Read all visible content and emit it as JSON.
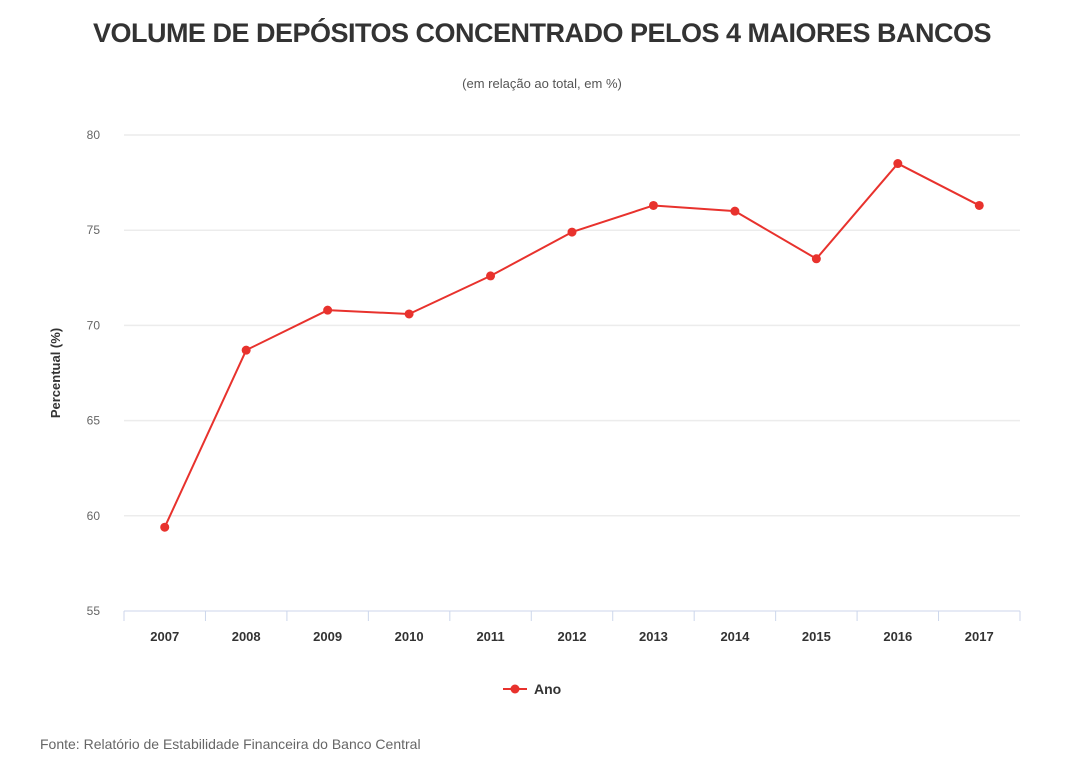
{
  "chart_data": {
    "type": "line",
    "title": "VOLUME DE DEPÓSITOS CONCENTRADO PELOS 4 MAIORES BANCOS",
    "subtitle": "(em relação ao total, em %)",
    "xlabel": "",
    "ylabel": "Percentual (%)",
    "ylim": [
      55,
      80
    ],
    "yticks": [
      "55",
      "60",
      "65",
      "70",
      "75",
      "80"
    ],
    "ytick_values": [
      55,
      60,
      65,
      70,
      75,
      80
    ],
    "categories": [
      "2007",
      "2008",
      "2009",
      "2010",
      "2011",
      "2012",
      "2013",
      "2014",
      "2015",
      "2016",
      "2017"
    ],
    "series": [
      {
        "name": "Ano",
        "color": "#e8322d",
        "values": [
          59.4,
          68.7,
          70.8,
          70.6,
          72.6,
          74.9,
          76.3,
          76.0,
          73.5,
          78.5,
          76.3
        ]
      }
    ],
    "grid": true,
    "legend_position": "bottom-center",
    "source": "Fonte: Relatório de Estabilidade Financeira do Banco Central"
  }
}
